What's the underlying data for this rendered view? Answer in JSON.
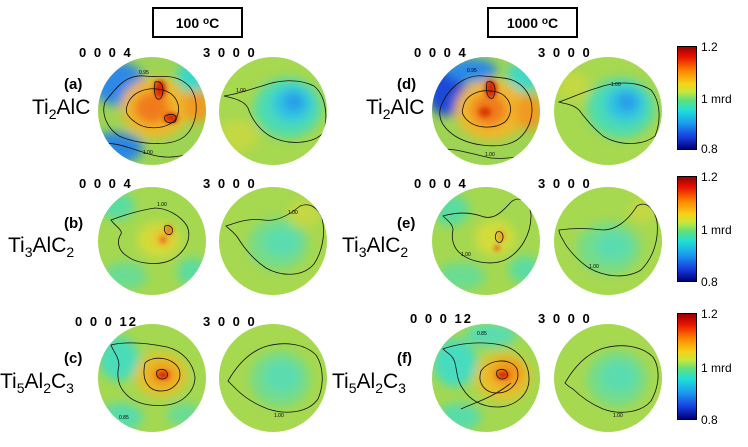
{
  "columns": [
    {
      "temp_value": "100",
      "temp_sup": "o",
      "temp_unit": "C"
    },
    {
      "temp_value": "1000",
      "temp_sup": "o",
      "temp_unit": "C"
    }
  ],
  "rows": [
    {
      "hkl_basal": "0 0 0 4",
      "hkl_prism": "3 0 0 0",
      "phase": {
        "base1": "Ti",
        "sub1": "2",
        "base2": "AlC",
        "sub2": ""
      }
    },
    {
      "hkl_basal": "0 0 0 4",
      "hkl_prism": "3 0 0 0",
      "phase": {
        "base1": "Ti",
        "sub1": "3",
        "base2": "AlC",
        "sub2": "2"
      }
    },
    {
      "hkl_basal": "0 0 0 12",
      "hkl_prism": "3 0 0 0",
      "phase": {
        "base1": "Ti",
        "sub1": "5",
        "base2": "Al",
        "sub2": "2",
        "base3": "C",
        "sub3": "3"
      }
    }
  ],
  "panel_tags": [
    "(a)",
    "(b)",
    "(c)",
    "(d)",
    "(e)",
    "(f)"
  ],
  "colorbar": {
    "max": "1.2",
    "mid": "1 mrd",
    "min": "0.8"
  },
  "contour_labels": {
    "high": "0.95",
    "one": "1.00",
    "low": "0.85"
  },
  "colors": {
    "high": "#d22a00",
    "warm": "#f0a020",
    "yellow": "#d8e040",
    "green": "#9ad850",
    "cyan": "#38d8c8",
    "blue": "#2070e0",
    "deep": "#0a30c0"
  }
}
